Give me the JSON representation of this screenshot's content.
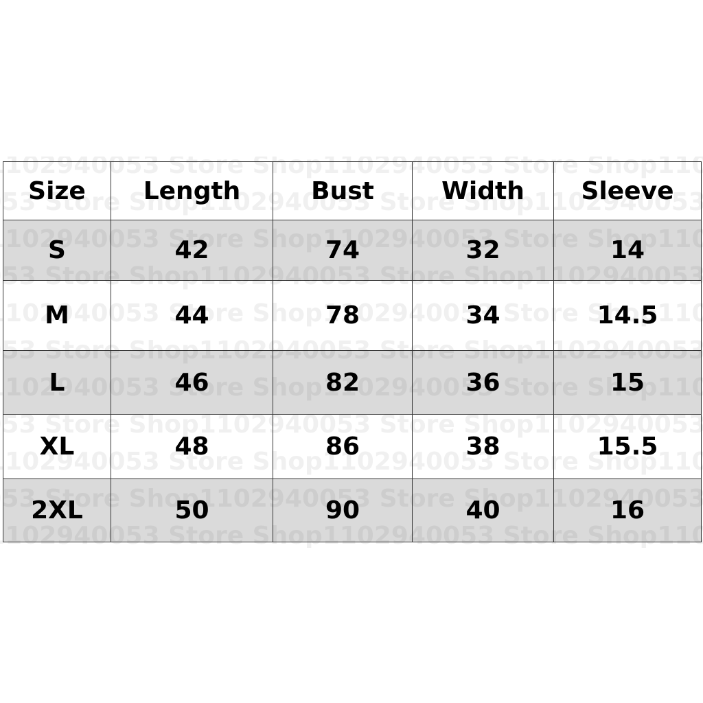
{
  "table": {
    "headers": [
      "Size",
      "Length",
      "Bust",
      "Width",
      "Sleeve"
    ],
    "rows": [
      [
        "S",
        "42",
        "74",
        "32",
        "14"
      ],
      [
        "M",
        "44",
        "78",
        "34",
        "14.5"
      ],
      [
        "L",
        "46",
        "82",
        "36",
        "15"
      ],
      [
        "XL",
        "48",
        "86",
        "38",
        "15.5"
      ],
      [
        "2XL",
        "50",
        "90",
        "40",
        "16"
      ]
    ],
    "shaded_rows": [
      "S",
      "L",
      "2XL"
    ],
    "shade_color": "#dadada",
    "border_color": "#333333"
  },
  "watermark": "Shop1102940053 Store"
}
